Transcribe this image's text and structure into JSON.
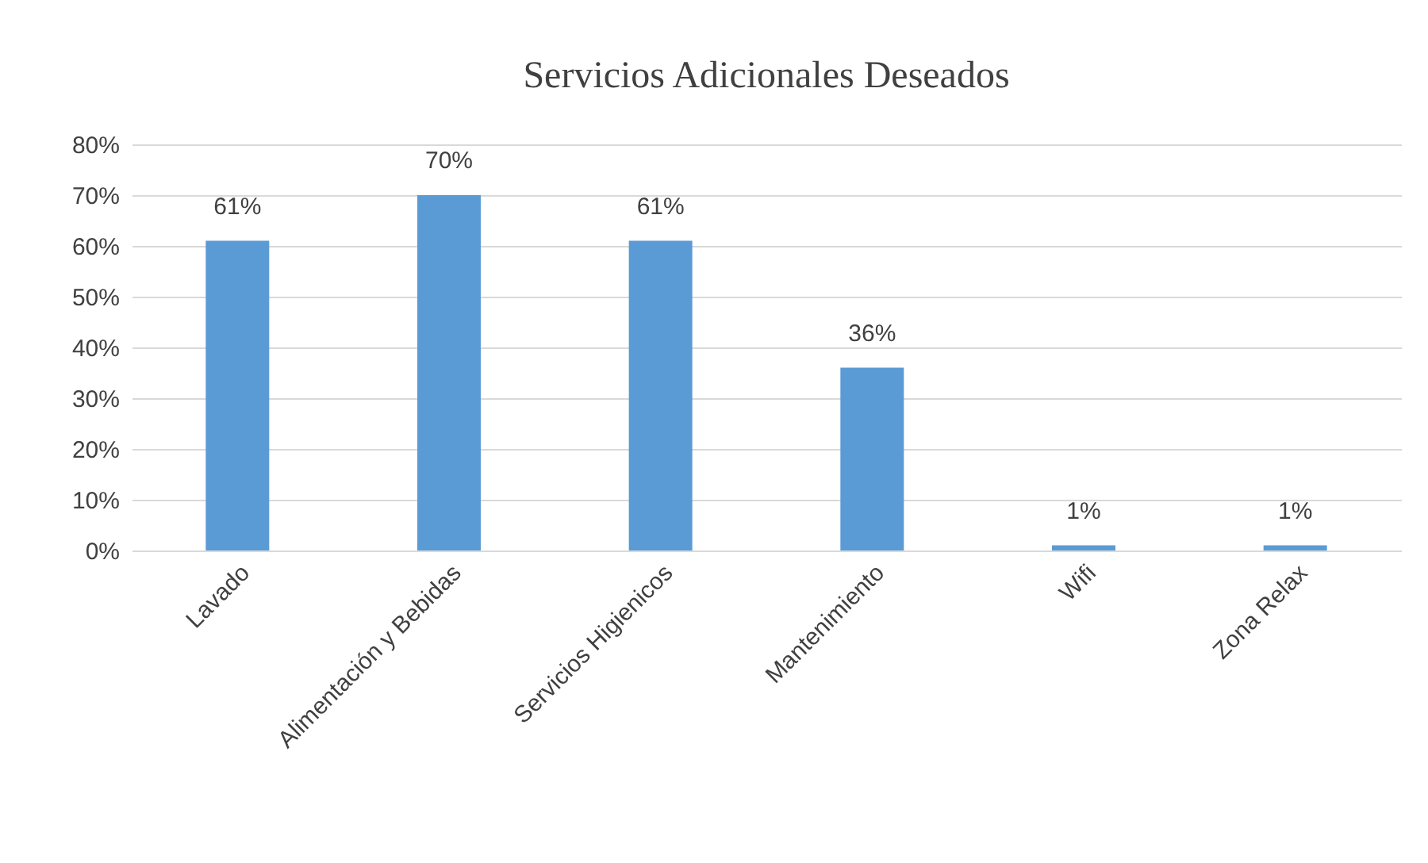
{
  "chart_data": {
    "type": "bar",
    "title": "Servicios Adicionales Deseados",
    "categories": [
      "Lavado",
      "Alimentación y Bebidas",
      "Servicios Higienicos",
      "Mantenimiento",
      "Wifi",
      "Zona Relax"
    ],
    "values": [
      61,
      70,
      61,
      36,
      1,
      1
    ],
    "value_labels": [
      "61%",
      "70%",
      "61%",
      "36%",
      "1%",
      "1%"
    ],
    "color": "#5b9bd5",
    "ylim": [
      0,
      80
    ],
    "yticks": [
      {
        "value": 0,
        "label": "0%"
      },
      {
        "value": 10,
        "label": "10%"
      },
      {
        "value": 20,
        "label": "20%"
      },
      {
        "value": 30,
        "label": "30%"
      },
      {
        "value": 40,
        "label": "40%"
      },
      {
        "value": 50,
        "label": "50%"
      },
      {
        "value": 60,
        "label": "60%"
      },
      {
        "value": 70,
        "label": "70%"
      },
      {
        "value": 80,
        "label": "80%"
      }
    ],
    "grid": "y"
  }
}
